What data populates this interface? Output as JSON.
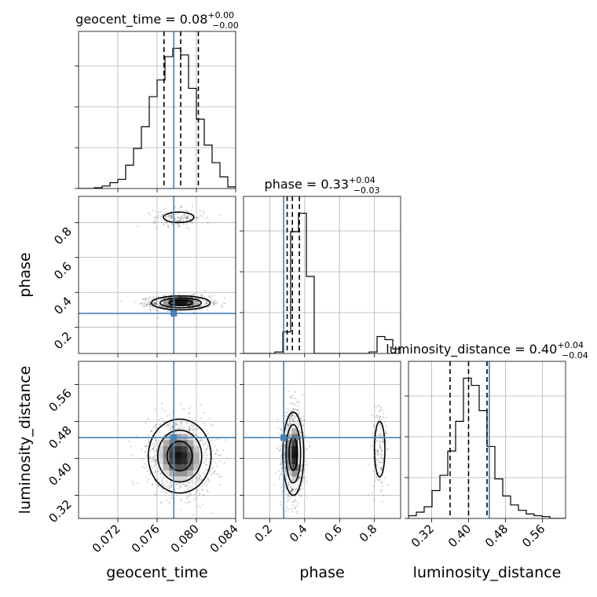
{
  "chart_data": {
    "type": "scatter",
    "subtype": "corner-plot",
    "parameters": [
      {
        "name": "geocent_time",
        "axis_label": "geocent_time",
        "range": [
          0.068,
          0.084
        ],
        "ticks": [
          0.072,
          0.076,
          0.08,
          0.084
        ],
        "tick_labels": [
          "0.072",
          "0.076",
          "0.080",
          "0.084"
        ],
        "title": {
          "main": "geocent_time = 0.08",
          "sup": "+0.00",
          "sub": "−0.00"
        },
        "median": 0.0784,
        "quantiles": [
          0.0767,
          0.0784,
          0.0802
        ],
        "truth": 0.0777,
        "hist": {
          "bins": [
            0.068,
            0.0688,
            0.0696,
            0.0704,
            0.0712,
            0.072,
            0.0728,
            0.0736,
            0.0744,
            0.0752,
            0.076,
            0.0768,
            0.0776,
            0.0784,
            0.0792,
            0.08,
            0.0808,
            0.0816,
            0.0824,
            0.0832,
            0.084
          ],
          "counts": [
            0,
            0,
            1,
            3,
            7,
            11,
            28,
            48,
            74,
            110,
            130,
            158,
            168,
            160,
            120,
            83,
            52,
            31,
            14,
            2
          ]
        }
      },
      {
        "name": "phase",
        "axis_label": "phase",
        "range": [
          0.05,
          0.95
        ],
        "ticks": [
          0.2,
          0.4,
          0.6,
          0.8
        ],
        "tick_labels": [
          "0.2",
          "0.4",
          "0.6",
          "0.8"
        ],
        "title": {
          "main": "phase = 0.33",
          "sup": "+0.04",
          "sub": "−0.03"
        },
        "median": 0.33,
        "quantiles": [
          0.3,
          0.33,
          0.37
        ],
        "truth": 0.28,
        "hist": {
          "bins": [
            0.05,
            0.095,
            0.14,
            0.185,
            0.23,
            0.275,
            0.32,
            0.365,
            0.41,
            0.455,
            0.5,
            0.545,
            0.59,
            0.635,
            0.68,
            0.725,
            0.77,
            0.815,
            0.86,
            0.905,
            0.95
          ],
          "counts": [
            0,
            0,
            0,
            0,
            1,
            14,
            79,
            91,
            50,
            0,
            0,
            0,
            0,
            0,
            0,
            0,
            1,
            11,
            9,
            3
          ]
        }
      },
      {
        "name": "luminosity_distance",
        "axis_label": "luminosity_distance",
        "range": [
          0.27,
          0.61
        ],
        "ticks": [
          0.32,
          0.4,
          0.48,
          0.56
        ],
        "tick_labels": [
          "0.32",
          "0.40",
          "0.48",
          "0.56"
        ],
        "title": {
          "main": "luminosity_distance = 0.40",
          "sup": "+0.04",
          "sub": "−0.04"
        },
        "median": 0.4,
        "quantiles": [
          0.36,
          0.4,
          0.44
        ],
        "truth": 0.445,
        "hist": {
          "bins": [
            0.27,
            0.287,
            0.304,
            0.321,
            0.338,
            0.355,
            0.372,
            0.389,
            0.406,
            0.423,
            0.44,
            0.457,
            0.474,
            0.491,
            0.508,
            0.525,
            0.542,
            0.559,
            0.576,
            0.593,
            0.61
          ],
          "counts": [
            3,
            7,
            13,
            31,
            48,
            75,
            108,
            156,
            148,
            120,
            80,
            44,
            25,
            15,
            9,
            5,
            3,
            2,
            0,
            0
          ]
        }
      }
    ],
    "pairs": [
      {
        "x": "geocent_time",
        "y": "phase",
        "modes": [
          {
            "cx": 0.0784,
            "cy": 0.34,
            "sx": 0.0015,
            "sy": 0.02,
            "rho": 0.0,
            "weight": 0.88
          },
          {
            "cx": 0.0782,
            "cy": 0.83,
            "sx": 0.0013,
            "sy": 0.025,
            "rho": 0.0,
            "weight": 0.12
          }
        ]
      },
      {
        "x": "geocent_time",
        "y": "luminosity_distance",
        "modes": [
          {
            "cx": 0.0783,
            "cy": 0.405,
            "sx": 0.0016,
            "sy": 0.04,
            "rho": -0.1,
            "weight": 1.0
          }
        ]
      },
      {
        "x": "phase",
        "y": "luminosity_distance",
        "modes": [
          {
            "cx": 0.335,
            "cy": 0.41,
            "sx": 0.03,
            "sy": 0.045,
            "rho": 0.0,
            "weight": 0.88
          },
          {
            "cx": 0.83,
            "cy": 0.42,
            "sx": 0.025,
            "sy": 0.05,
            "rho": 0.0,
            "weight": 0.12
          }
        ]
      }
    ],
    "contour_levels": [
      0.118,
      0.393,
      0.675,
      0.864
    ],
    "colors": {
      "truth": "#4682b4",
      "contour": "#000000",
      "hist": "#000000",
      "grid": "#b0b0b0"
    },
    "grid": true
  }
}
